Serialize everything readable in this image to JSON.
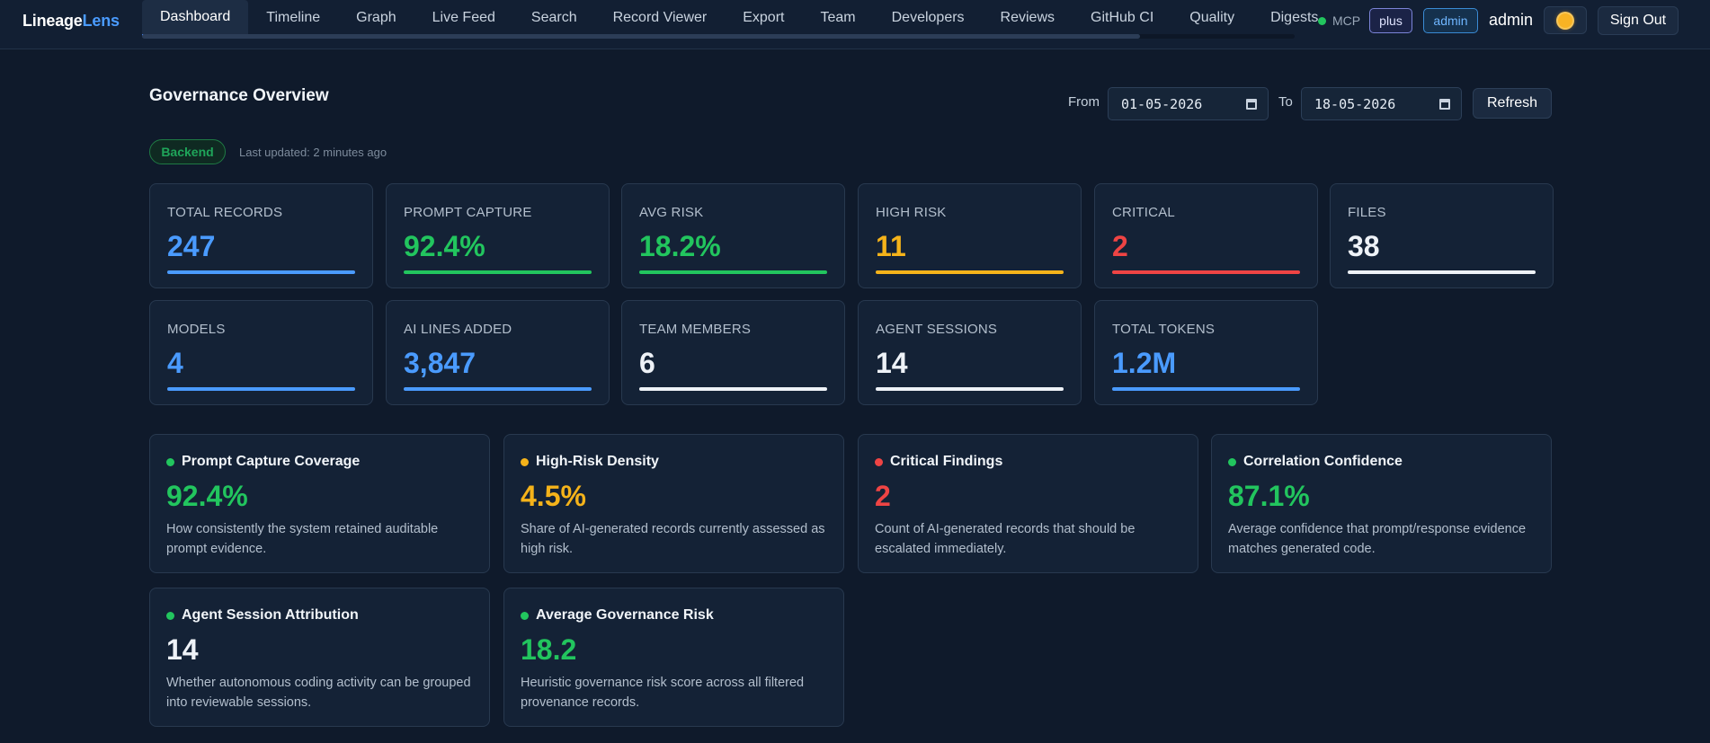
{
  "nav": {
    "logo_part1": "Lineage",
    "logo_part2": "Lens",
    "tabs": [
      {
        "label": "Dashboard",
        "active": true
      },
      {
        "label": "Timeline"
      },
      {
        "label": "Graph"
      },
      {
        "label": "Live Feed"
      },
      {
        "label": "Search"
      },
      {
        "label": "Record Viewer"
      },
      {
        "label": "Export"
      },
      {
        "label": "Team"
      },
      {
        "label": "Developers"
      },
      {
        "label": "Reviews"
      },
      {
        "label": "GitHub CI"
      },
      {
        "label": "Quality"
      },
      {
        "label": "Digests"
      }
    ],
    "mcp_label": "MCP",
    "plan_badge": "plus",
    "role_badge": "admin",
    "username": "admin",
    "theme_icon": "sun-icon",
    "signout_label": "Sign Out"
  },
  "header": {
    "title": "Governance Overview",
    "from_label": "From",
    "from_value": "01-05-2026",
    "to_label": "To",
    "to_value": "18-05-2026",
    "refresh_label": "Refresh",
    "backend_label": "Backend",
    "last_updated": "Last updated: 2 minutes ago"
  },
  "stats": [
    {
      "label": "TOTAL RECORDS",
      "value": "247",
      "color": "#4a9bff"
    },
    {
      "label": "PROMPT CAPTURE",
      "value": "92.4%",
      "color": "#22c55e"
    },
    {
      "label": "AVG RISK",
      "value": "18.2%",
      "color": "#22c55e"
    },
    {
      "label": "HIGH RISK",
      "value": "11",
      "color": "#f5b31a"
    },
    {
      "label": "CRITICAL",
      "value": "2",
      "color": "#ef4444"
    },
    {
      "label": "FILES",
      "value": "38",
      "color": "#eef2f7"
    },
    {
      "label": "MODELS",
      "value": "4",
      "color": "#4a9bff"
    },
    {
      "label": "AI LINES ADDED",
      "value": "3,847",
      "color": "#4a9bff"
    },
    {
      "label": "TEAM MEMBERS",
      "value": "6",
      "color": "#eef2f7"
    },
    {
      "label": "AGENT SESSIONS",
      "value": "14",
      "color": "#eef2f7"
    },
    {
      "label": "TOTAL TOKENS",
      "value": "1.2M",
      "color": "#4a9bff"
    }
  ],
  "metrics": [
    {
      "title": "Prompt Capture Coverage",
      "value": "92.4%",
      "status": "green",
      "description": "How consistently the system retained auditable prompt evidence."
    },
    {
      "title": "High-Risk Density",
      "value": "4.5%",
      "status": "amber",
      "description": "Share of AI-generated records currently assessed as high risk."
    },
    {
      "title": "Critical Findings",
      "value": "2",
      "status": "red",
      "description": "Count of AI-generated records that should be escalated immediately."
    },
    {
      "title": "Correlation Confidence",
      "value": "87.1%",
      "status": "green",
      "description": "Average confidence that prompt/response evidence matches generated code."
    },
    {
      "title": "Agent Session Attribution",
      "value": "14",
      "status": "green",
      "description": "Whether autonomous coding activity can be grouped into reviewable sessions."
    },
    {
      "title": "Average Governance Risk",
      "value": "18.2",
      "status": "green",
      "description": "Heuristic governance risk score across all filtered provenance records."
    }
  ]
}
